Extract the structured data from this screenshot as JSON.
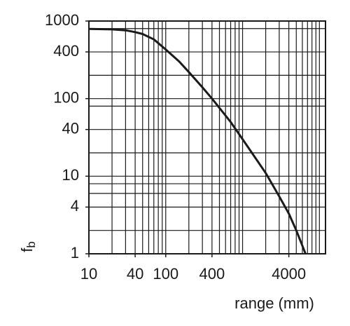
{
  "chart_data": {
    "type": "line",
    "x": [
      10,
      20,
      30,
      40,
      50,
      70,
      100,
      150,
      200,
      300,
      400,
      700,
      1000,
      2000,
      3000,
      4000,
      5000,
      6600
    ],
    "values": [
      790,
      780,
      760,
      720,
      680,
      580,
      430,
      300,
      220,
      140,
      100,
      50,
      30,
      11,
      5.5,
      3.3,
      2,
      1
    ],
    "color": "#1a1a1a",
    "xlabel": "range (mm)",
    "ylabel": {
      "main": "f",
      "sub": "b"
    },
    "xscale": "log",
    "yscale": "log",
    "xlim": [
      10,
      12000
    ],
    "ylim": [
      1,
      1000
    ],
    "xticks": [
      10,
      40,
      100,
      400,
      4000
    ],
    "yticks": [
      1,
      4,
      10,
      40,
      100,
      400,
      1000
    ],
    "grid": true,
    "xgrid": [
      10,
      20,
      30,
      40,
      50,
      60,
      70,
      80,
      90,
      100,
      200,
      300,
      400,
      500,
      600,
      700,
      800,
      900,
      1000,
      2000,
      3000,
      4000,
      5000,
      6000,
      7000,
      8000,
      9000,
      10000
    ],
    "ygrid": [
      1,
      2,
      4,
      6,
      8,
      10,
      20,
      40,
      80,
      100,
      200,
      400,
      800,
      1000
    ]
  }
}
